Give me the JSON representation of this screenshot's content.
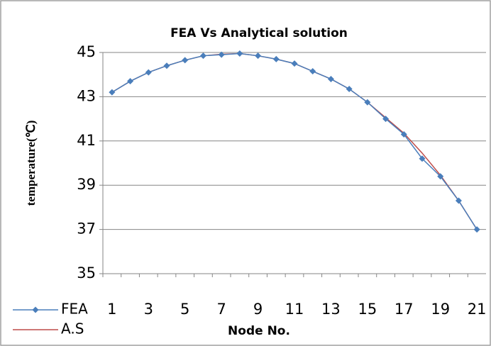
{
  "chart_data": {
    "type": "line",
    "title": "FEA Vs Analytical solution",
    "x_label": "Node No.",
    "y_label": "temperature(℃)",
    "categories": [
      "1",
      null,
      "3",
      null,
      "5",
      null,
      "7",
      null,
      "9",
      null,
      "11",
      null,
      "13",
      null,
      "15",
      null,
      "17",
      null,
      "19",
      null,
      "21"
    ],
    "series": [
      {
        "name": "FEA",
        "color": "#4a7ebb",
        "marker": "diamond",
        "values": [
          43.2,
          43.7,
          44.1,
          44.4,
          44.65,
          44.85,
          44.9,
          44.95,
          44.85,
          44.7,
          44.5,
          44.15,
          43.8,
          43.35,
          42.75,
          42.0,
          41.3,
          40.2,
          39.4,
          38.3,
          37.0
        ]
      },
      {
        "name": "A.S",
        "color": "#be4b48",
        "values": [
          43.2,
          43.7,
          44.1,
          44.4,
          44.65,
          44.85,
          44.92,
          44.95,
          44.85,
          44.7,
          44.5,
          44.15,
          43.8,
          43.35,
          42.75,
          42.05,
          41.35,
          40.45,
          39.45,
          38.3,
          37.0
        ]
      }
    ],
    "ylim": [
      35,
      45
    ],
    "yticks": [
      35,
      37,
      39,
      41,
      43,
      45
    ],
    "grid": true,
    "legend": "bottom-left"
  }
}
